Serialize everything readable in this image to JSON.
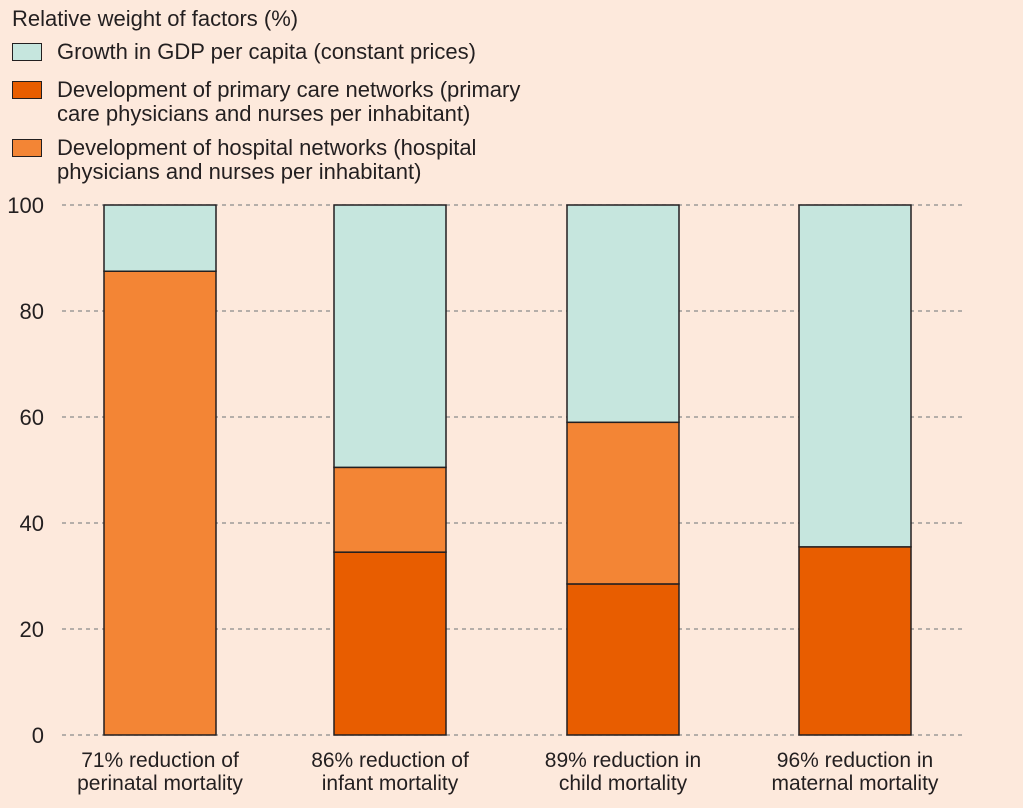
{
  "chart_data": {
    "type": "bar",
    "stacked": true,
    "title": "Relative weight of factors (%)",
    "categories": [
      "71% reduction of perinatal mortality",
      "86% reduction of infant mortality",
      "89% reduction in child mortality",
      "96% reduction in maternal mortality"
    ],
    "category_lines": [
      [
        "71% reduction of",
        "perinatal mortality"
      ],
      [
        "86% reduction of",
        "infant mortality"
      ],
      [
        "89% reduction in",
        "child mortality"
      ],
      [
        "96% reduction in",
        "maternal mortality"
      ]
    ],
    "series": [
      {
        "name": "Development of primary care networks (primary care physicians and nurses per inhabitant)",
        "name_lines": [
          "Development of primary care networks (primary",
          "care physicians and nurses per inhabitant)"
        ],
        "color": "#e85d00",
        "values": [
          0,
          34.5,
          28.5,
          35.5
        ]
      },
      {
        "name": "Development of hospital networks (hospital physicians and nurses per inhabitant)",
        "name_lines": [
          "Development of hospital networks (hospital",
          "physicians and nurses per inhabitant)"
        ],
        "color": "#f38535",
        "values": [
          87.5,
          16,
          30.5,
          0
        ]
      },
      {
        "name": "Growth in GDP per capita (constant prices)",
        "name_lines": [
          "Growth in GDP per capita (constant prices)"
        ],
        "color": "#c6e6de",
        "values": [
          12.5,
          49.5,
          41,
          64.5
        ]
      }
    ],
    "legend_order": [
      2,
      0,
      1
    ],
    "ylim": [
      0,
      100
    ],
    "yticks": [
      0,
      20,
      40,
      60,
      80,
      100
    ],
    "grid": true,
    "legend_position": "top-left"
  }
}
